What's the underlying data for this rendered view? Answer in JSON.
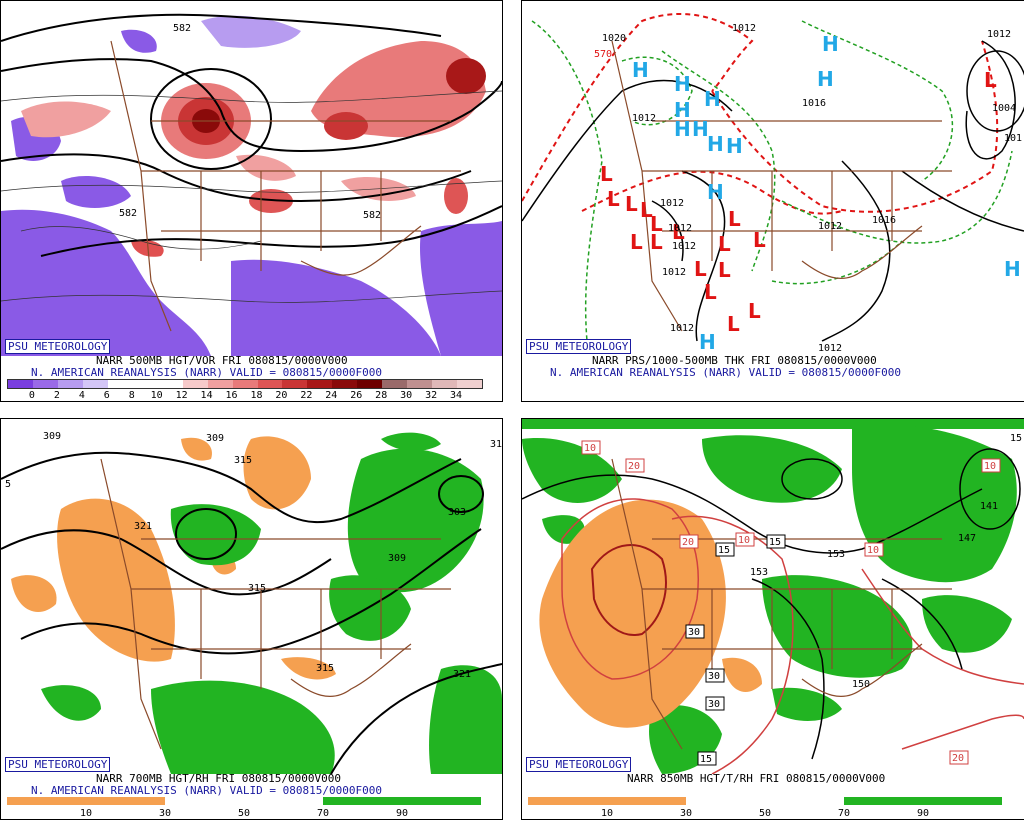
{
  "panels": {
    "tl": {
      "badge": "PSU METEOROLOGY",
      "line1": "NARR 500MB HGT/VOR FRI 080815/0000V000",
      "line2": "N. AMERICAN REANALYSIS (NARR) VALID = 080815/0000F000",
      "scale_colors": [
        "#7a3ee0",
        "#9a6ae8",
        "#b79cf0",
        "#d4c6f7",
        "#ffffff",
        "#ffffff",
        "#ffffff",
        "#f7caca",
        "#f0a0a0",
        "#e87a7a",
        "#de5555",
        "#c93535",
        "#a81818",
        "#8a0a0a",
        "#6e0000",
        "#9a6a6a",
        "#c09090",
        "#e0b8b8",
        "#f0d0d0"
      ],
      "scale_labels": [
        "0",
        "2",
        "4",
        "6",
        "8",
        "10",
        "12",
        "14",
        "16",
        "18",
        "20",
        "22",
        "24",
        "26",
        "28",
        "30",
        "32",
        "34"
      ],
      "labels": [
        "582",
        "582",
        "582"
      ]
    },
    "tr": {
      "badge": "PSU METEOROLOGY",
      "line1": "NARR PRS/1000-500MB THK FRI 080815/0000V000",
      "line2": "N. AMERICAN REANALYSIS (NARR) VALID = 080815/0000F000",
      "highs": [
        "H",
        "H",
        "H",
        "H",
        "H",
        "H",
        "H",
        "H",
        "H",
        "H",
        "H",
        "H",
        "H"
      ],
      "lows": [
        "L",
        "L",
        "L",
        "L",
        "L",
        "L",
        "L",
        "L",
        "L",
        "L",
        "L",
        "L",
        "L",
        "L",
        "L",
        "L",
        "L"
      ],
      "labels": [
        "1012",
        "1020",
        "570",
        "1012",
        "1012",
        "1004",
        "1012",
        "1012",
        "1012",
        "1012",
        "1012",
        "1012",
        "1016",
        "1016",
        "1012",
        "101"
      ]
    },
    "bl": {
      "badge": "PSU METEOROLOGY",
      "line1": "NARR 700MB HGT/RH FRI 080815/0000V000",
      "line2": "N. AMERICAN REANALYSIS (NARR) VALID = 080815/0000F000",
      "scale_labels": [
        "10",
        "30",
        "50",
        "70",
        "90"
      ],
      "labels": [
        "309",
        "309",
        "315",
        "321",
        "303",
        "309",
        "315",
        "315",
        "321",
        "31",
        "5"
      ]
    },
    "br": {
      "badge": "PSU METEOROLOGY",
      "line1": "NARR 850MB HGT/T/RH FRI 080815/0000V000",
      "scale_labels": [
        "10",
        "30",
        "50",
        "70",
        "90"
      ],
      "temp_labels": [
        "10",
        "20",
        "20",
        "15",
        "10",
        "15",
        "10",
        "30",
        "30",
        "30",
        "15",
        "20",
        "10"
      ],
      "labels": [
        "153",
        "153",
        "147",
        "141",
        "150",
        "15"
      ]
    }
  },
  "colors": {
    "caption": "#000000",
    "caption_blue": "#1a1aa0",
    "dry_orange": "#f5a050",
    "moist_green": "#22b422",
    "vort_red": "#e05050",
    "vort_purple": "#8a5ae6",
    "high_blue": "#22a8e6",
    "low_red": "#e01414",
    "border_brown": "#8a4a2a"
  }
}
